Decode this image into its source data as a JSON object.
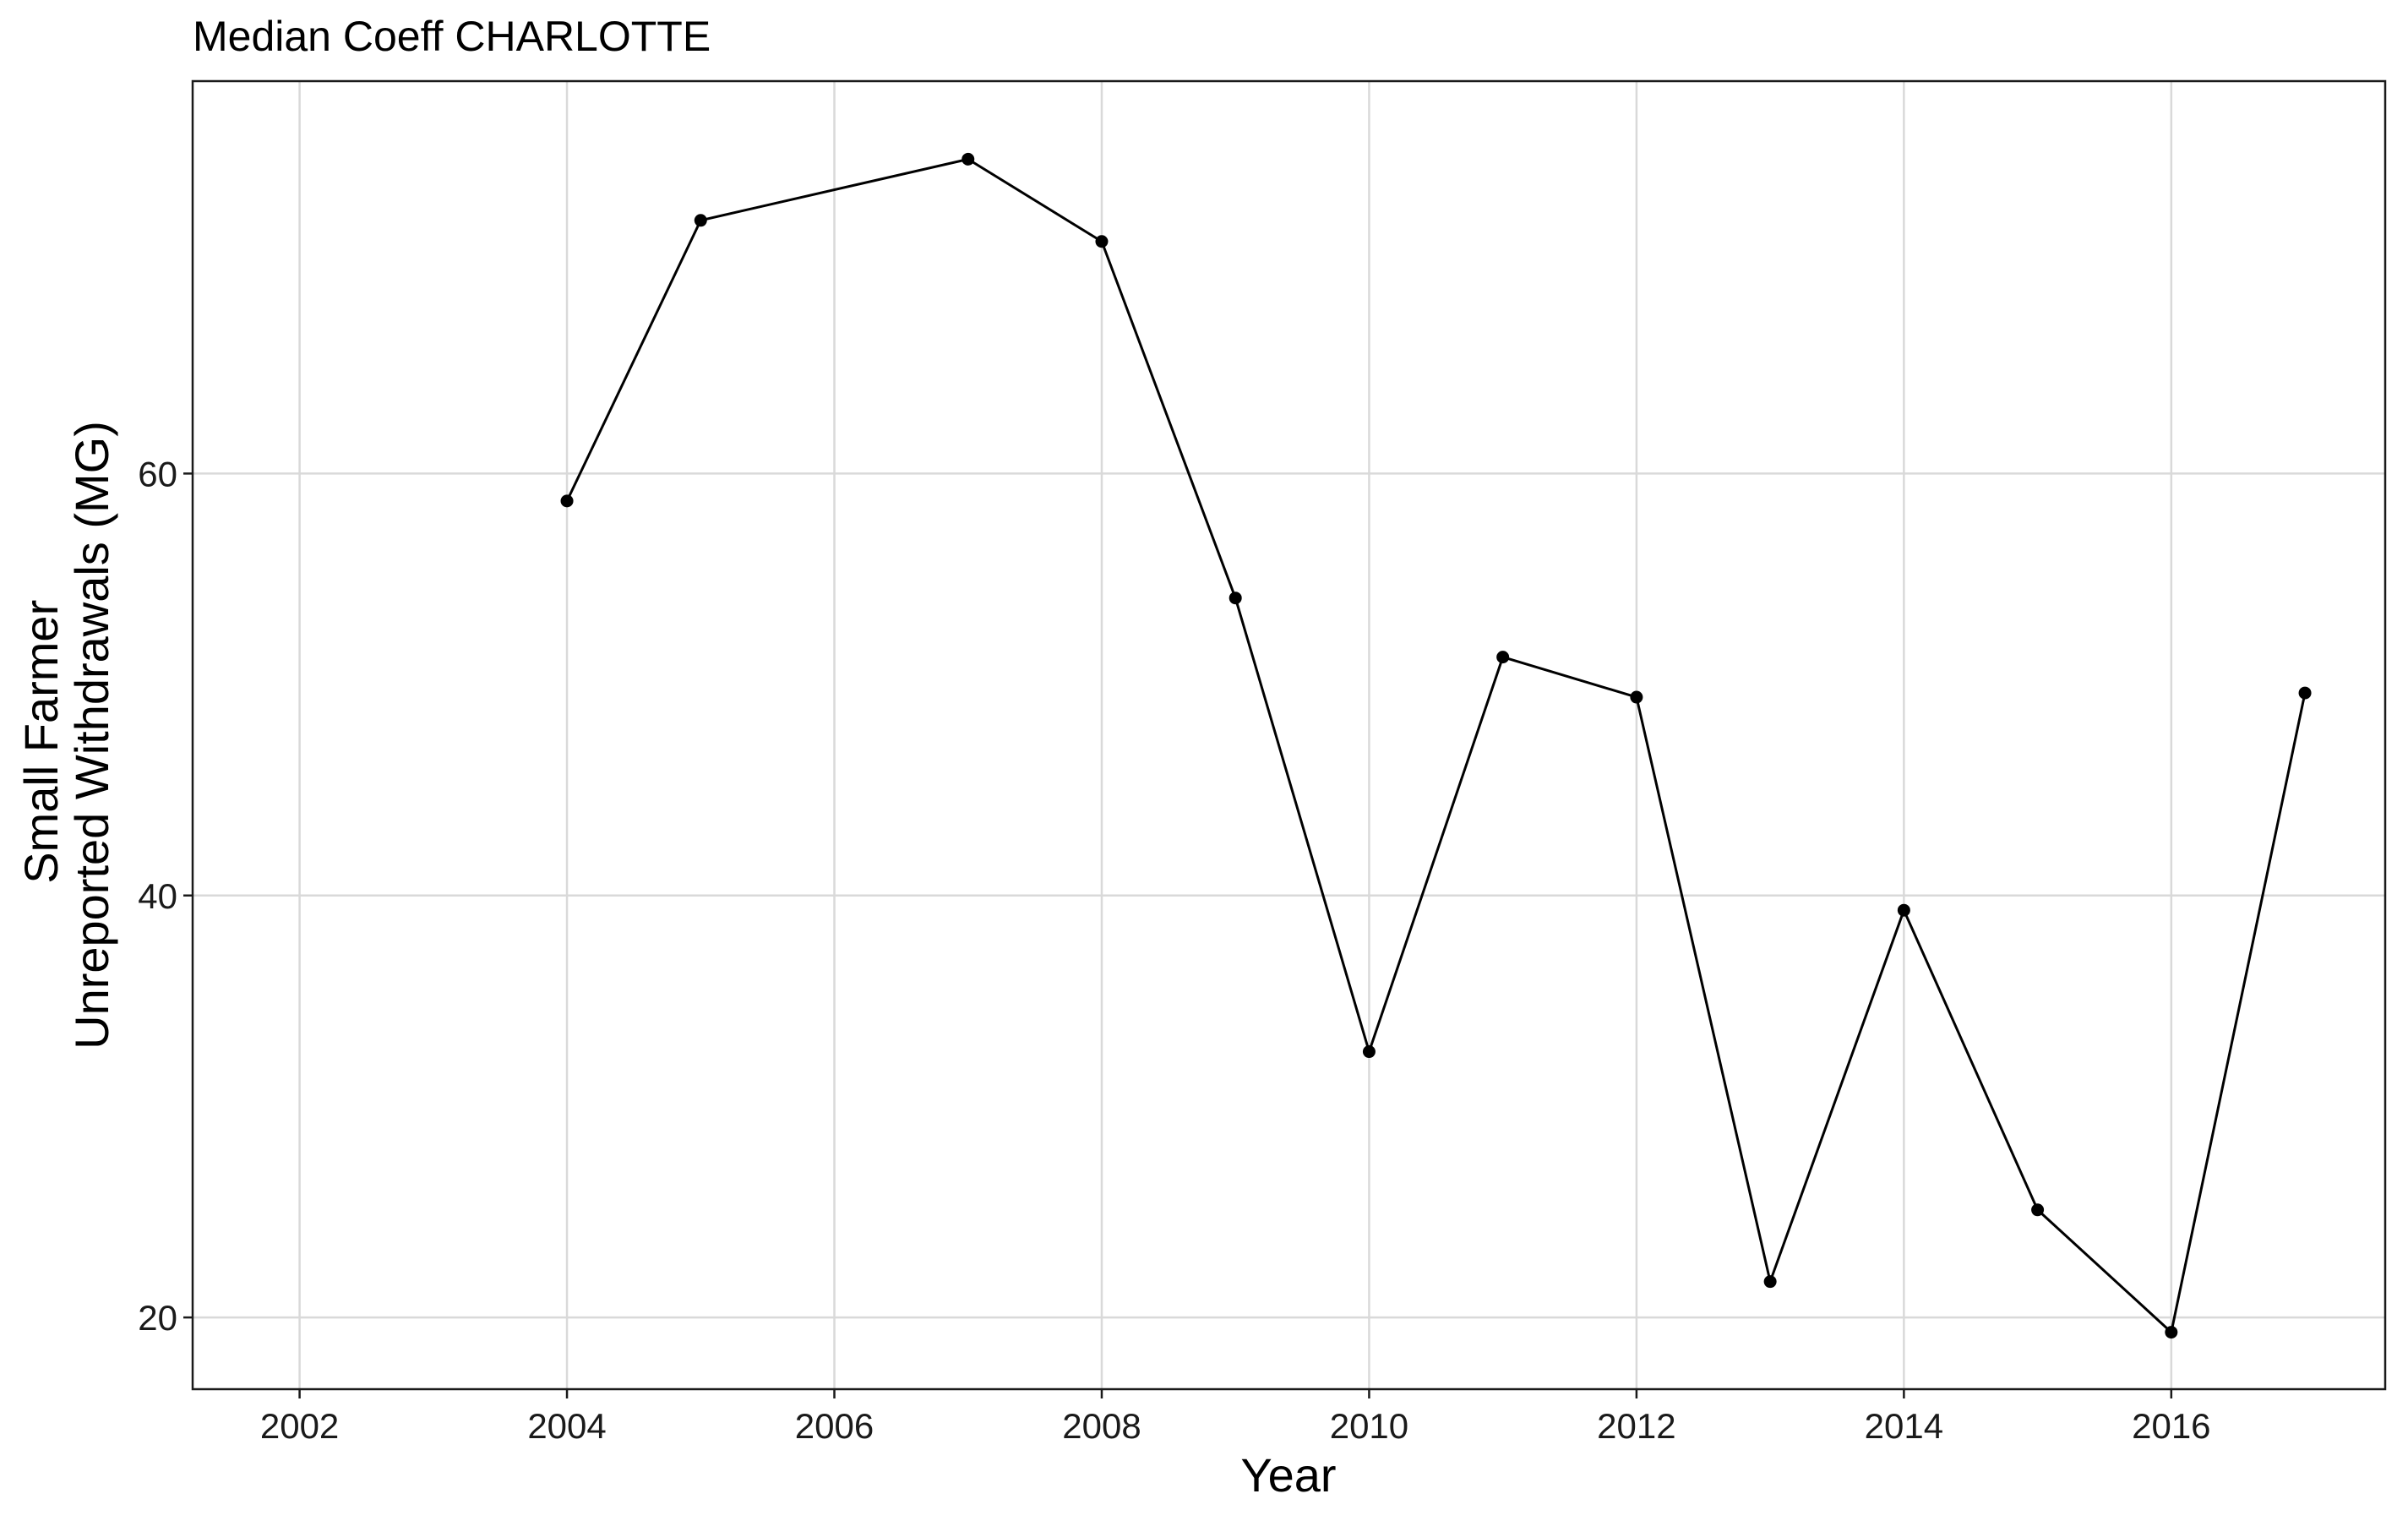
{
  "chart_data": {
    "type": "line",
    "title": "Median Coeff CHARLOTTE",
    "xlabel": "Year",
    "ylabel_lines": [
      "Small Farmer",
      "Unreported Withdrawals (MG)"
    ],
    "xlim": [
      2001.2,
      2017.6
    ],
    "ylim": [
      16.6,
      78.6
    ],
    "x_ticks": [
      2002,
      2004,
      2006,
      2008,
      2010,
      2012,
      2014,
      2016
    ],
    "y_ticks": [
      20,
      40,
      60
    ],
    "grid": true,
    "legend": "none",
    "series": [
      {
        "color": "#000000",
        "x": [
          2004.0,
          2005.0,
          2007.0,
          2008.0,
          2009.0,
          2010.0,
          2011.0,
          2012.0,
          2013.0,
          2014.0,
          2015.0,
          2016.0,
          2017.0
        ],
        "y": [
          58.7,
          72.0,
          74.9,
          71.0,
          54.1,
          32.6,
          51.3,
          49.4,
          21.7,
          39.3,
          25.1,
          19.3,
          49.6
        ]
      }
    ],
    "colors": {
      "panel_border": "#1a1a1a",
      "grid": "#d9d9d9",
      "series": "#000000"
    }
  }
}
